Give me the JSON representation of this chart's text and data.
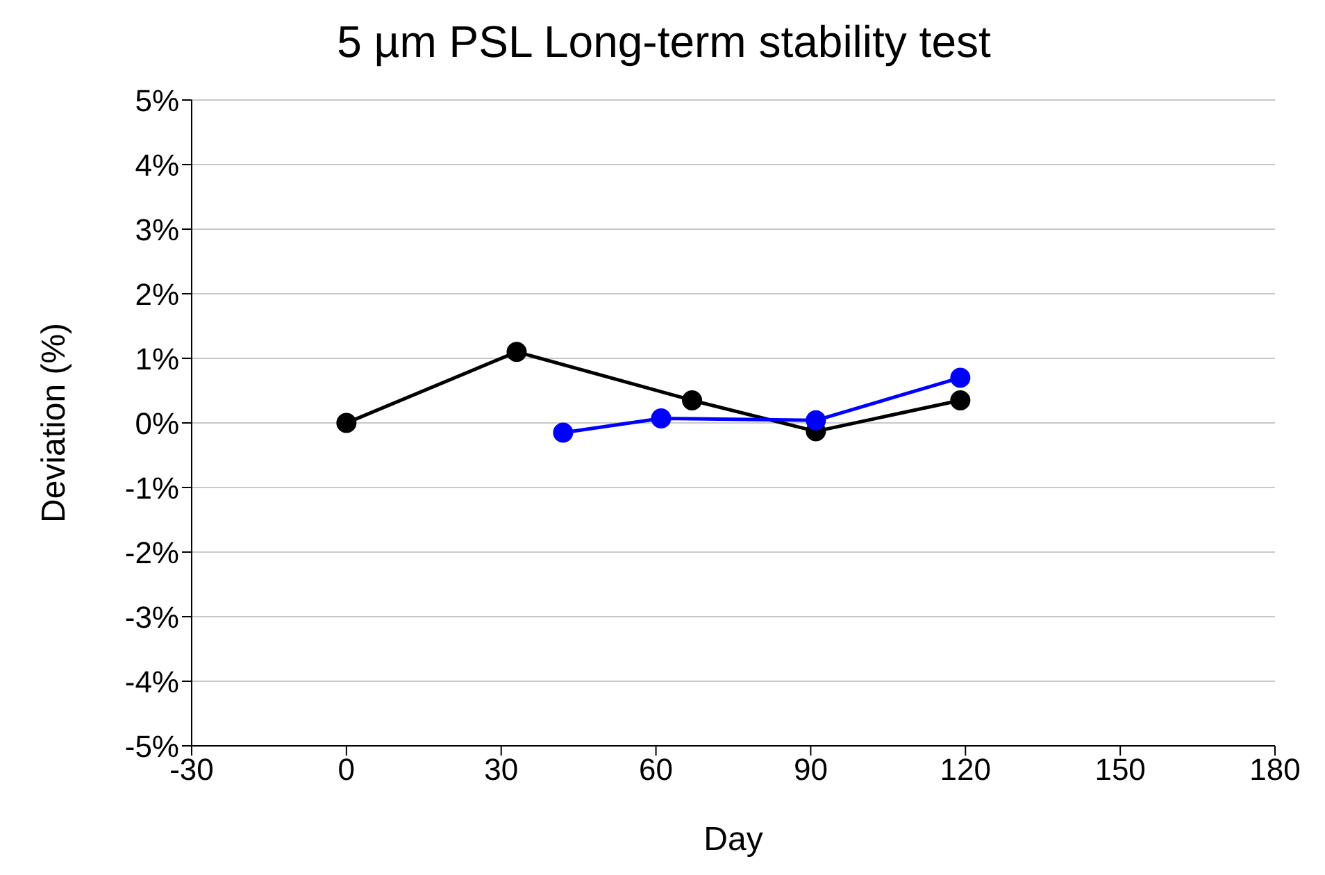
{
  "chart_data": {
    "type": "line",
    "title": "5 µm PSL Long-term stability test",
    "xlabel": "Day",
    "ylabel": "Deviation (%)",
    "series": [
      {
        "color": "#000000",
        "x": [
          0,
          33,
          67,
          91,
          119
        ],
        "values": [
          0,
          1.1,
          0.35,
          -0.13,
          0.35
        ]
      },
      {
        "color": "#0000ff",
        "x": [
          42,
          61,
          91,
          119
        ],
        "values": [
          -0.15,
          0.07,
          0.04,
          0.7
        ]
      }
    ],
    "xlim": [
      -30,
      180
    ],
    "xticks": [
      -30,
      0,
      30,
      60,
      90,
      120,
      150,
      180
    ],
    "ylim": [
      -5,
      5
    ],
    "yticks": [
      {
        "value": -5,
        "label": "-5%"
      },
      {
        "value": -4,
        "label": "-4%"
      },
      {
        "value": -3,
        "label": "-3%"
      },
      {
        "value": -2,
        "label": "-2%"
      },
      {
        "value": -1,
        "label": "-1%"
      },
      {
        "value": 0,
        "label": "0%"
      },
      {
        "value": 1,
        "label": "1%"
      },
      {
        "value": 2,
        "label": "2%"
      },
      {
        "value": 3,
        "label": "3%"
      },
      {
        "value": 4,
        "label": "4%"
      },
      {
        "value": 5,
        "label": "5%"
      }
    ],
    "grid": "y",
    "marker": "circle",
    "line_style": "solid"
  }
}
